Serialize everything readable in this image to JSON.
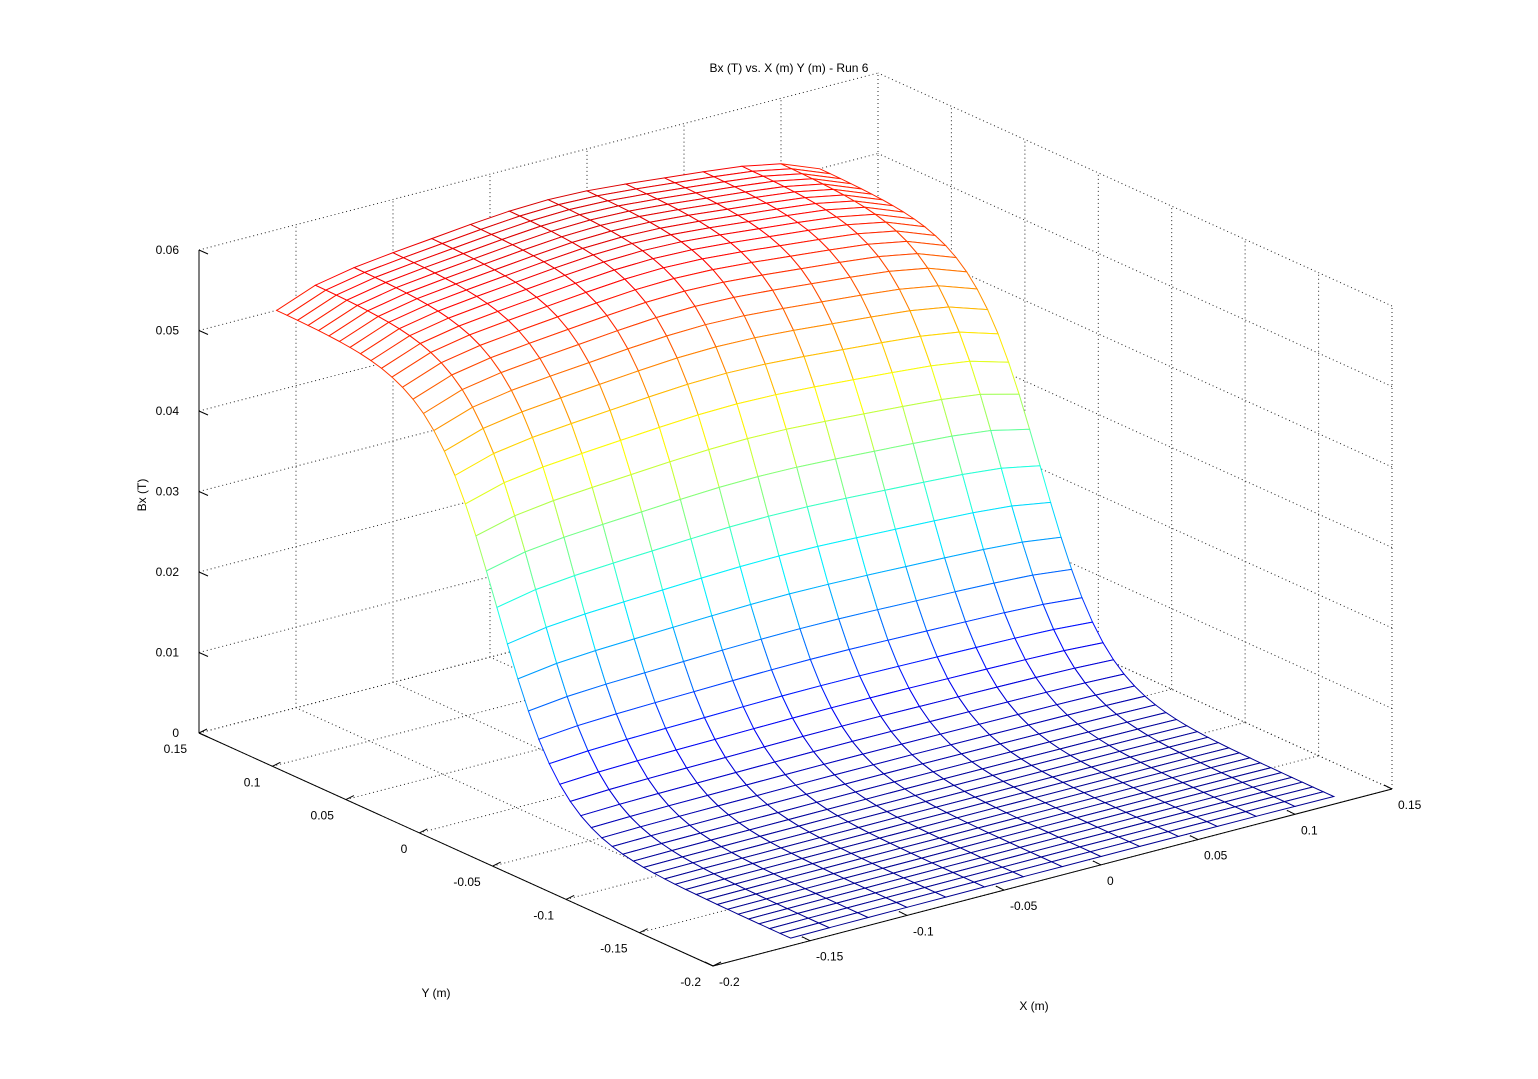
{
  "chart_data": {
    "type": "surface",
    "title": "Bx (T) vs. X (m) Y (m) - Run 6",
    "xlabel": "X (m)",
    "ylabel": "Y (m)",
    "zlabel": "Bx (T)",
    "xlim": [
      -0.2,
      0.15
    ],
    "ylim": [
      -0.2,
      0.15
    ],
    "zlim": [
      0,
      0.06
    ],
    "x_ticks": [
      -0.2,
      -0.15,
      -0.1,
      -0.05,
      0,
      0.05,
      0.1,
      0.15
    ],
    "x_tick_labels": [
      "-0.2",
      "-0.15",
      "-0.1",
      "-0.05",
      "0",
      "0.05",
      "0.1",
      "0.15"
    ],
    "y_ticks": [
      -0.2,
      -0.15,
      -0.1,
      -0.05,
      0,
      0.05,
      0.1,
      0.15
    ],
    "y_tick_labels": [
      "-0.2",
      "-0.15",
      "-0.1",
      "-0.05",
      "0",
      "0.05",
      "0.1",
      "0.15"
    ],
    "z_ticks": [
      0,
      0.01,
      0.02,
      0.03,
      0.04,
      0.05,
      0.06
    ],
    "z_tick_labels": [
      "0",
      "0.01",
      "0.02",
      "0.03",
      "0.04",
      "0.05",
      "0.06"
    ],
    "grid": true,
    "render": "wireframe mesh",
    "colormap": "jet",
    "surface": {
      "x_range": [
        -0.16,
        0.12
      ],
      "y_range": [
        -0.2,
        0.15
      ],
      "x_points": 15,
      "y_points": 50,
      "plateau_Bx": 0.053,
      "peak_Bx": 0.055,
      "edge_Bx_at_ymin": 0.001,
      "transition_center_y": 0.0,
      "transition_width_y": 0.022,
      "x_edge_rolloff_Bx": 0.003
    }
  }
}
